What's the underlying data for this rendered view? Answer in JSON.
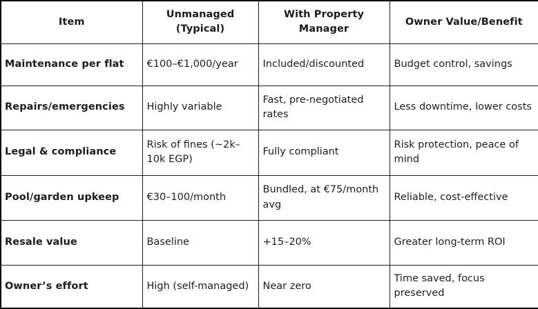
{
  "table": {
    "headers": [
      "Item",
      "Unmanaged (Typical)",
      "With Property Manager",
      "Owner Value/Benefit"
    ],
    "rows": [
      {
        "item": "Maintenance per flat",
        "unmanaged": "€100–€1,000/year",
        "with_manager": "Included/discounted",
        "benefit": "Budget control, savings"
      },
      {
        "item": "Repairs/emergencies",
        "unmanaged": "Highly variable",
        "with_manager": "Fast, pre-negotiated rates",
        "benefit": "Less downtime, lower costs"
      },
      {
        "item": "Legal & compliance",
        "unmanaged": "Risk of fines (~2k–10k EGP)",
        "with_manager": "Fully compliant",
        "benefit": "Risk protection, peace of mind"
      },
      {
        "item": "Pool/garden upkeep",
        "unmanaged": "€30–100/month",
        "with_manager": "Bundled, at €75/month avg",
        "benefit": "Reliable, cost-effective"
      },
      {
        "item": "Resale value",
        "unmanaged": "Baseline",
        "with_manager": "+15–20%",
        "benefit": "Greater long-term ROI"
      },
      {
        "item": "Owner’s effort",
        "unmanaged": "High (self-managed)",
        "with_manager": "Near zero",
        "benefit": "Time saved, focus preserved"
      }
    ]
  },
  "colors": {
    "border": "#000000",
    "text": "#1c1c1c",
    "background": "#ffffff"
  }
}
